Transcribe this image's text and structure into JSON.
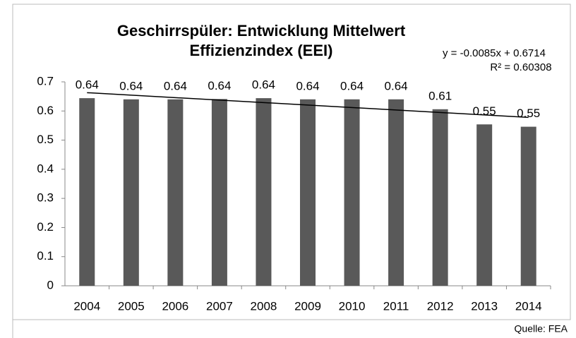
{
  "chart_data": {
    "type": "bar",
    "title": [
      "Geschirrspüler: Entwicklung Mittelwert",
      "Effizienzindex (EEI)"
    ],
    "categories": [
      "2004",
      "2005",
      "2006",
      "2007",
      "2008",
      "2009",
      "2010",
      "2011",
      "2012",
      "2013",
      "2014"
    ],
    "values": [
      0.644,
      0.64,
      0.64,
      0.641,
      0.644,
      0.64,
      0.64,
      0.64,
      0.606,
      0.554,
      0.546
    ],
    "value_labels": [
      "0.64",
      "0.64",
      "0.64",
      "0.64",
      "0.64",
      "0.64",
      "0.64",
      "0.64",
      "0.61",
      "0.55",
      "0.55"
    ],
    "color": "#595959",
    "ylim": [
      0,
      0.7
    ],
    "yticks": [
      0,
      0.1,
      0.2,
      0.3,
      0.4,
      0.5,
      0.6,
      0.7
    ],
    "grid": false,
    "trendline": {
      "slope": -0.0085,
      "intercept": 0.6714,
      "equation": "y = -0.0085x + 0.6714",
      "r2_label": "R² = 0.60308"
    },
    "source": "Quelle: FEA"
  }
}
